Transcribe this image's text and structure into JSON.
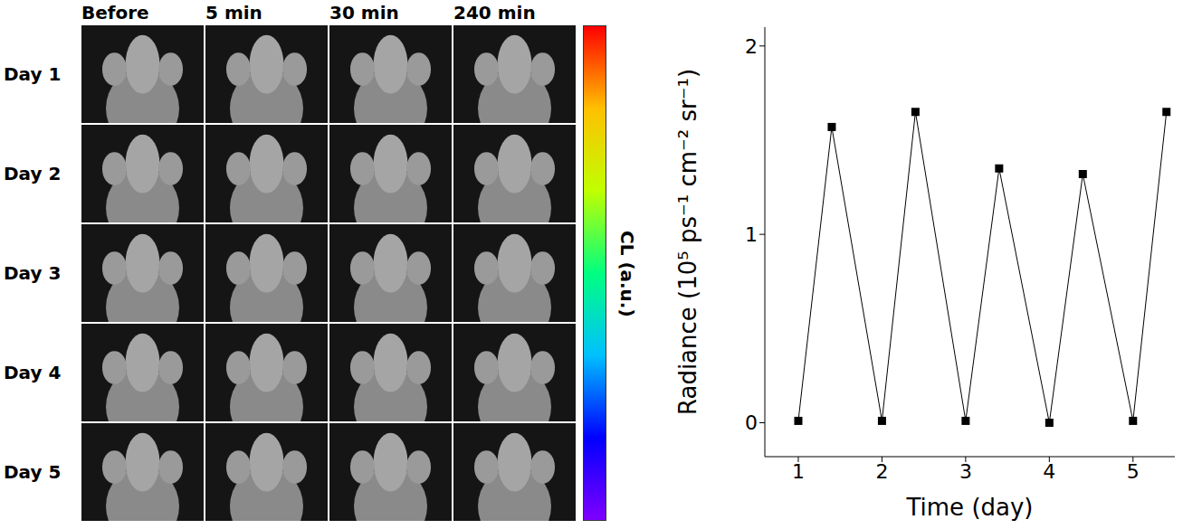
{
  "image_panel": {
    "columns": [
      "Before",
      "5 min",
      "30 min",
      "240 min"
    ],
    "rows": [
      "Day 1",
      "Day 2",
      "Day 3",
      "Day 4",
      "Day 5"
    ],
    "colorbar_label": "CL (a.u.)"
  },
  "chart_data": {
    "type": "line",
    "x": [
      1,
      1.4,
      2,
      2.4,
      3,
      3.4,
      4,
      4.4,
      5,
      5.4
    ],
    "values": [
      0.01,
      1.57,
      0.01,
      1.65,
      0.01,
      1.35,
      0.0,
      1.32,
      0.01,
      1.65
    ],
    "color": "#000000",
    "marker": "square",
    "xlim": [
      0.6,
      5.5
    ],
    "ylim": [
      -0.18,
      2.1
    ],
    "xticks": [
      1,
      2,
      3,
      4,
      5
    ],
    "yticks": [
      0,
      1,
      2
    ],
    "x_label": "Time (day)",
    "y_label": "Radiance (10⁵ ps⁻¹ cm⁻² sr⁻¹)",
    "grid": false
  }
}
